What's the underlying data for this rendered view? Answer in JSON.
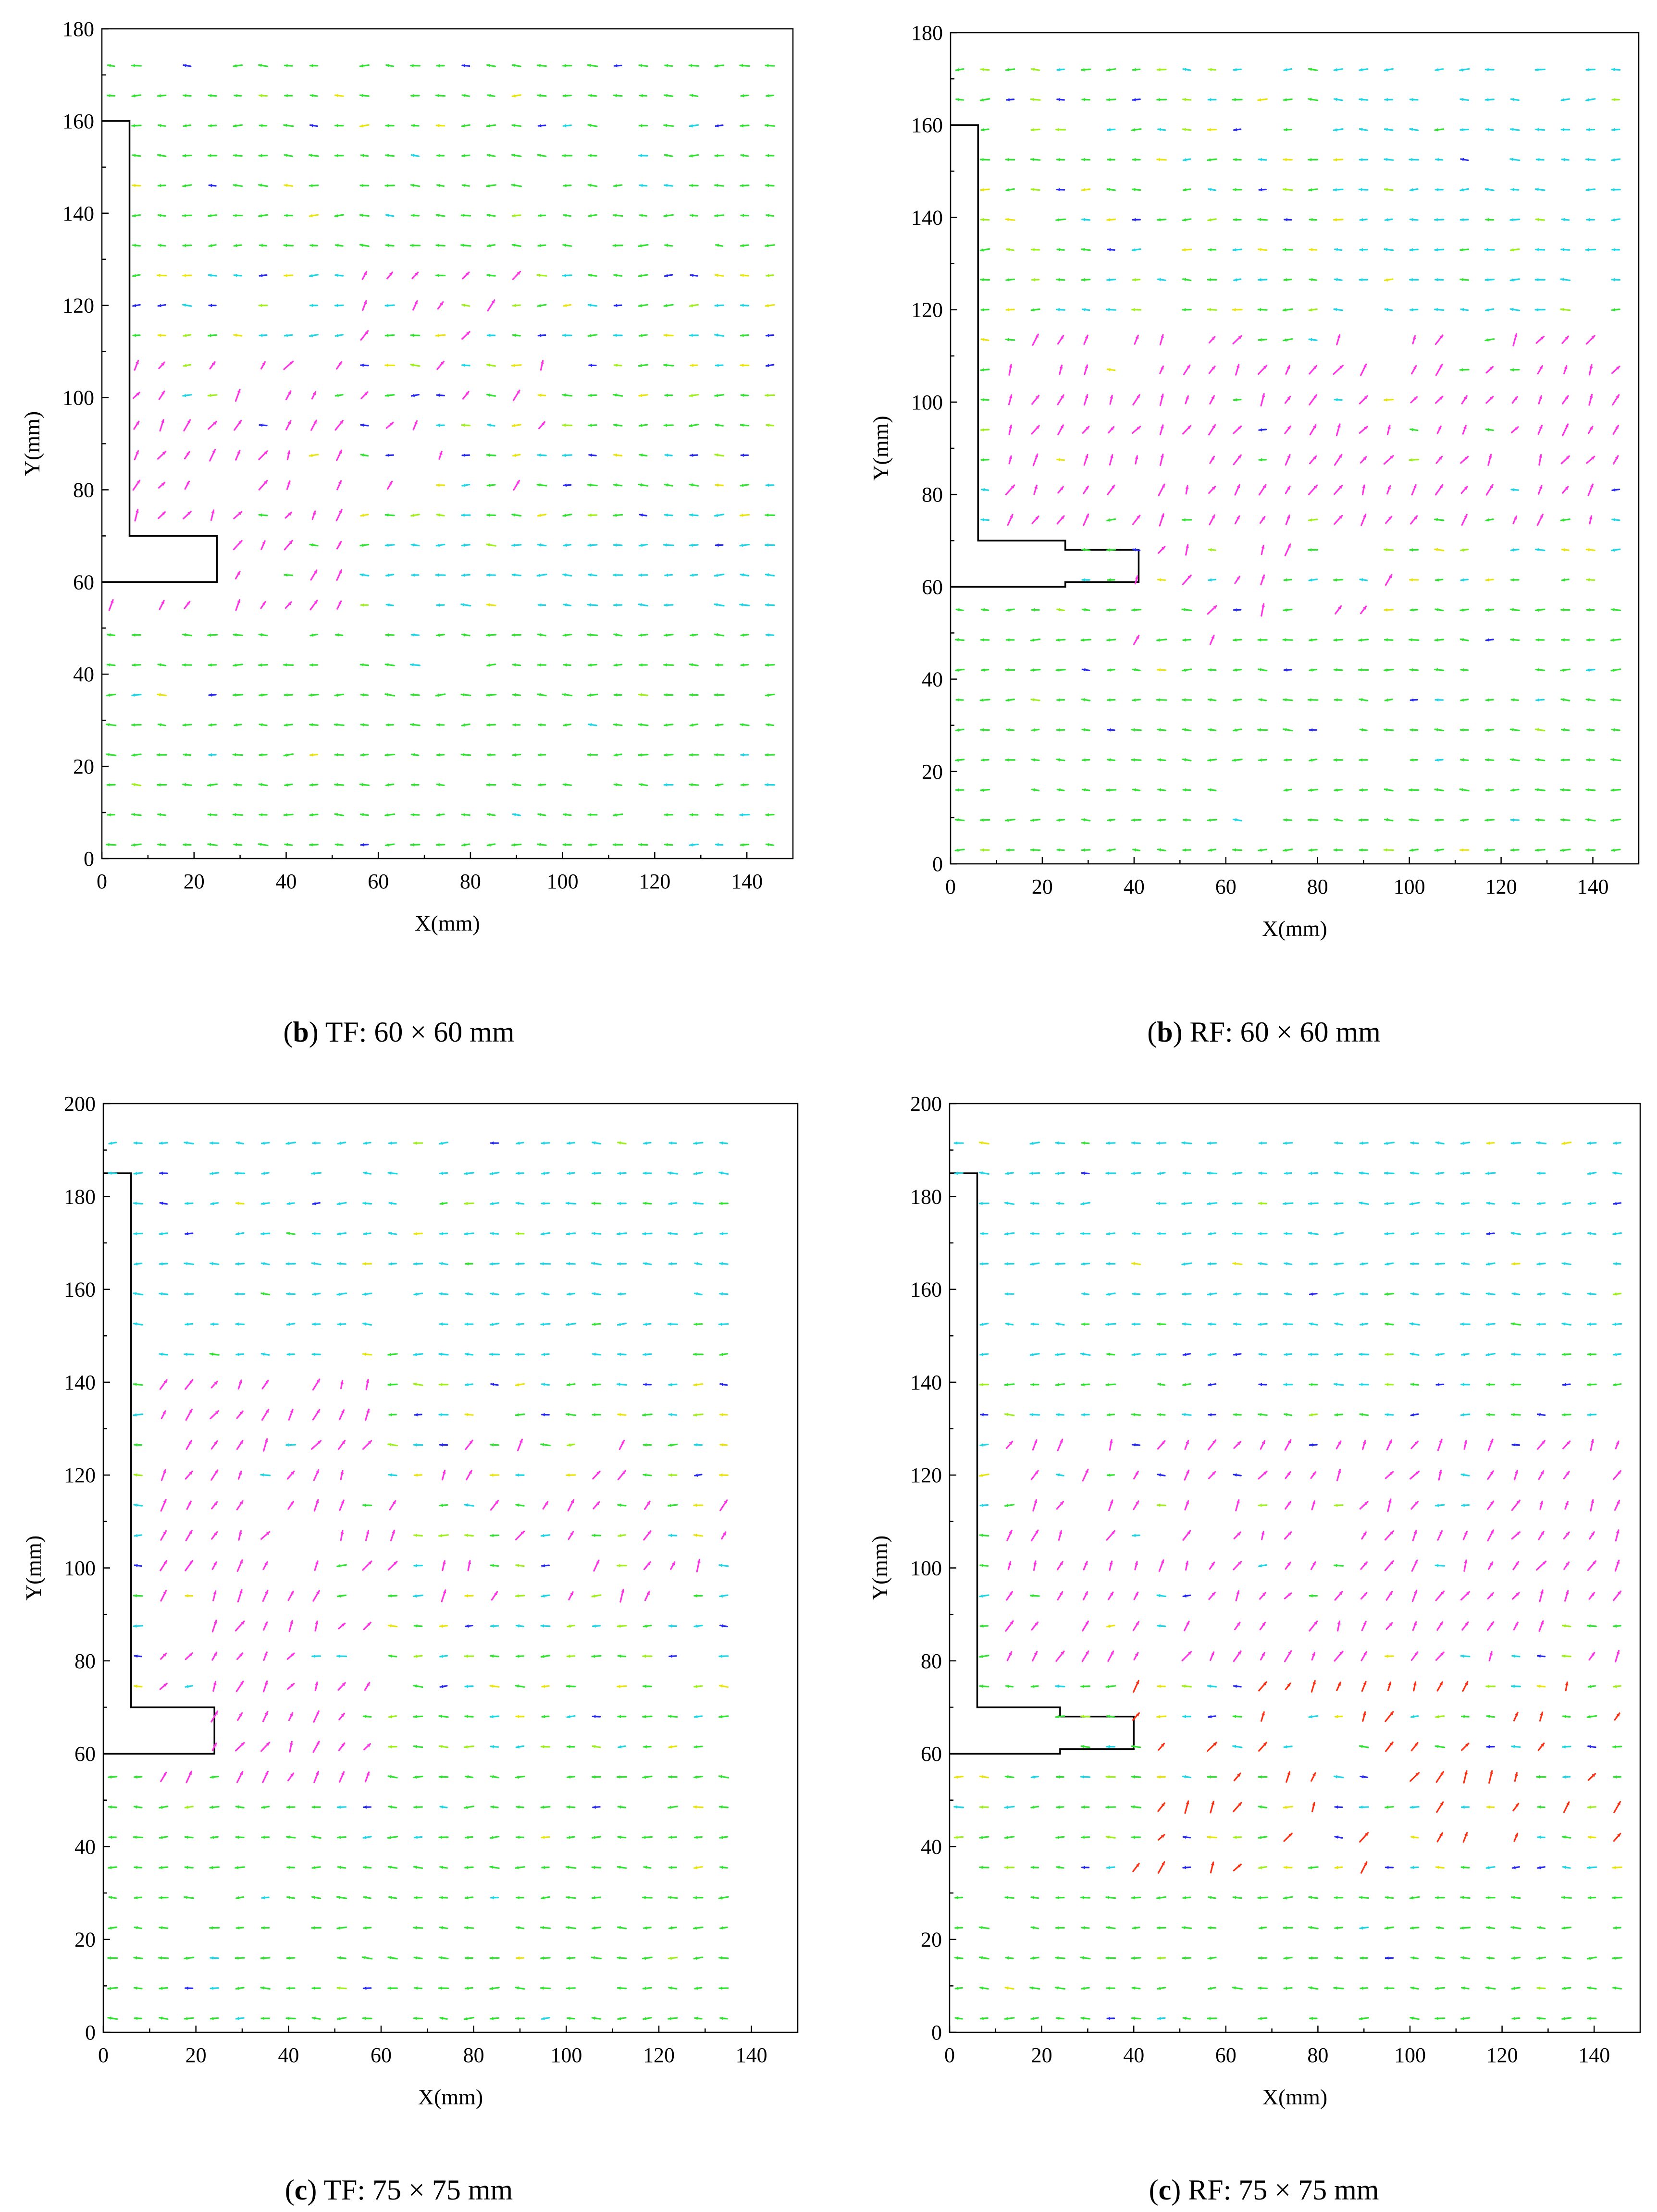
{
  "colors": {
    "magenta": "#ff30e6",
    "red": "#ff2d10",
    "orange": "#ff9a10",
    "yellow": "#e8e40c",
    "yellowgreen": "#9ef01a",
    "green": "#30e330",
    "cyan": "#1cd6e6",
    "blue": "#2428f2"
  },
  "chart_data": [
    {
      "type": "quiver",
      "caption": {
        "letter": "b",
        "text": " TF: 60 × 60 mm"
      },
      "xlabel": "X(mm)",
      "ylabel": "Y(mm)",
      "xlim": [
        0,
        150
      ],
      "ylim": [
        0,
        180
      ],
      "xticks": [
        0,
        20,
        40,
        60,
        80,
        100,
        120,
        140
      ],
      "yticks": [
        0,
        20,
        40,
        60,
        80,
        100,
        120,
        140,
        160,
        180
      ],
      "grid": false,
      "obstacle_outline_mm": [
        [
          0,
          160
        ],
        [
          6,
          160
        ],
        [
          6,
          70
        ],
        [
          25,
          70
        ],
        [
          25,
          60
        ],
        [
          0,
          60
        ]
      ],
      "vector_field": {
        "x_range": [
          2,
          148
        ],
        "y_range": [
          3,
          172
        ],
        "spacing_mm": [
          5.5,
          6.5
        ],
        "dominant_color_regions": [
          {
            "x": [
              2,
              55
            ],
            "y": [
              55,
              110
            ],
            "color": "magenta"
          },
          {
            "x": [
              55,
              100
            ],
            "y": [
              75,
              130
            ],
            "color": "magenta",
            "density": 0.35
          },
          {
            "x": [
              0,
              150
            ],
            "y": [
              0,
              50
            ],
            "color": "green"
          },
          {
            "x": [
              60,
              150
            ],
            "y": [
              0,
              70
            ],
            "color": "cyan"
          },
          {
            "x": [
              0,
              150
            ],
            "y": [
              130,
              175
            ],
            "color": "green"
          }
        ]
      }
    },
    {
      "type": "quiver",
      "caption": {
        "letter": "b",
        "text": " RF: 60 × 60 mm"
      },
      "xlabel": "X(mm)",
      "ylabel": "Y(mm)",
      "xlim": [
        0,
        150
      ],
      "ylim": [
        0,
        180
      ],
      "xticks": [
        0,
        20,
        40,
        60,
        80,
        100,
        120,
        140
      ],
      "yticks": [
        0,
        20,
        40,
        60,
        80,
        100,
        120,
        140,
        160,
        180
      ],
      "grid": false,
      "obstacle_outline_mm": [
        [
          0,
          160
        ],
        [
          6,
          160
        ],
        [
          6,
          70
        ],
        [
          25,
          70
        ],
        [
          25,
          68
        ],
        [
          41,
          68
        ],
        [
          41,
          61
        ],
        [
          25,
          61
        ],
        [
          25,
          60
        ],
        [
          0,
          60
        ]
      ],
      "vector_field": {
        "x_range": [
          2,
          148
        ],
        "y_range": [
          3,
          174
        ],
        "spacing_mm": [
          5.5,
          6.5
        ],
        "dominant_color_regions": [
          {
            "x": [
              8,
              150
            ],
            "y": [
              72,
              115
            ],
            "color": "magenta"
          },
          {
            "x": [
              40,
              100
            ],
            "y": [
              45,
              72
            ],
            "color": "magenta",
            "density": 0.4
          },
          {
            "x": [
              0,
              150
            ],
            "y": [
              0,
              55
            ],
            "color": "green"
          },
          {
            "x": [
              80,
              150
            ],
            "y": [
              115,
              175
            ],
            "color": "cyan"
          }
        ]
      }
    },
    {
      "type": "quiver",
      "caption": {
        "letter": "c",
        "text": " TF: 75 × 75 mm"
      },
      "xlabel": "X(mm)",
      "ylabel": "Y(mm)",
      "xlim": [
        0,
        150
      ],
      "ylim": [
        0,
        200
      ],
      "xticks": [
        0,
        20,
        40,
        60,
        80,
        100,
        120,
        140
      ],
      "yticks": [
        0,
        20,
        40,
        60,
        80,
        100,
        120,
        140,
        160,
        180,
        200
      ],
      "grid": false,
      "obstacle_outline_mm": [
        [
          0,
          185
        ],
        [
          6,
          185
        ],
        [
          6,
          70
        ],
        [
          24,
          70
        ],
        [
          24,
          60
        ],
        [
          0,
          60
        ]
      ],
      "vector_field": {
        "x_range": [
          2,
          138
        ],
        "y_range": [
          3,
          196
        ],
        "spacing_mm": [
          5.5,
          6.5
        ],
        "dominant_color_regions": [
          {
            "x": [
              8,
              60
            ],
            "y": [
              55,
              140
            ],
            "color": "magenta"
          },
          {
            "x": [
              60,
              135
            ],
            "y": [
              90,
              130
            ],
            "color": "magenta",
            "density": 0.35
          },
          {
            "x": [
              0,
              140
            ],
            "y": [
              0,
              55
            ],
            "color": "green"
          },
          {
            "x": [
              0,
              140
            ],
            "y": [
              140,
              196
            ],
            "color": "cyan"
          }
        ]
      }
    },
    {
      "type": "quiver",
      "caption": {
        "letter": "c",
        "text": " RF: 75 × 75 mm"
      },
      "xlabel": "X(mm)",
      "ylabel": "Y(mm)",
      "xlim": [
        0,
        150
      ],
      "ylim": [
        0,
        200
      ],
      "xticks": [
        0,
        20,
        40,
        60,
        80,
        100,
        120,
        140
      ],
      "yticks": [
        0,
        20,
        40,
        60,
        80,
        100,
        120,
        140,
        160,
        180,
        200
      ],
      "grid": false,
      "obstacle_outline_mm": [
        [
          0,
          185
        ],
        [
          6,
          185
        ],
        [
          6,
          70
        ],
        [
          24,
          70
        ],
        [
          24,
          68
        ],
        [
          40,
          68
        ],
        [
          40,
          61
        ],
        [
          24,
          61
        ],
        [
          24,
          60
        ],
        [
          0,
          60
        ]
      ],
      "vector_field": {
        "x_range": [
          2,
          148
        ],
        "y_range": [
          3,
          194
        ],
        "spacing_mm": [
          5.5,
          6.5
        ],
        "dominant_color_regions": [
          {
            "x": [
              8,
              150
            ],
            "y": [
              75,
              130
            ],
            "color": "magenta"
          },
          {
            "x": [
              40,
              150
            ],
            "y": [
              35,
              75
            ],
            "color": "red",
            "density": 0.45
          },
          {
            "x": [
              0,
              150
            ],
            "y": [
              0,
              35
            ],
            "color": "green"
          },
          {
            "x": [
              0,
              150
            ],
            "y": [
              140,
              194
            ],
            "color": "cyan"
          }
        ]
      }
    }
  ]
}
